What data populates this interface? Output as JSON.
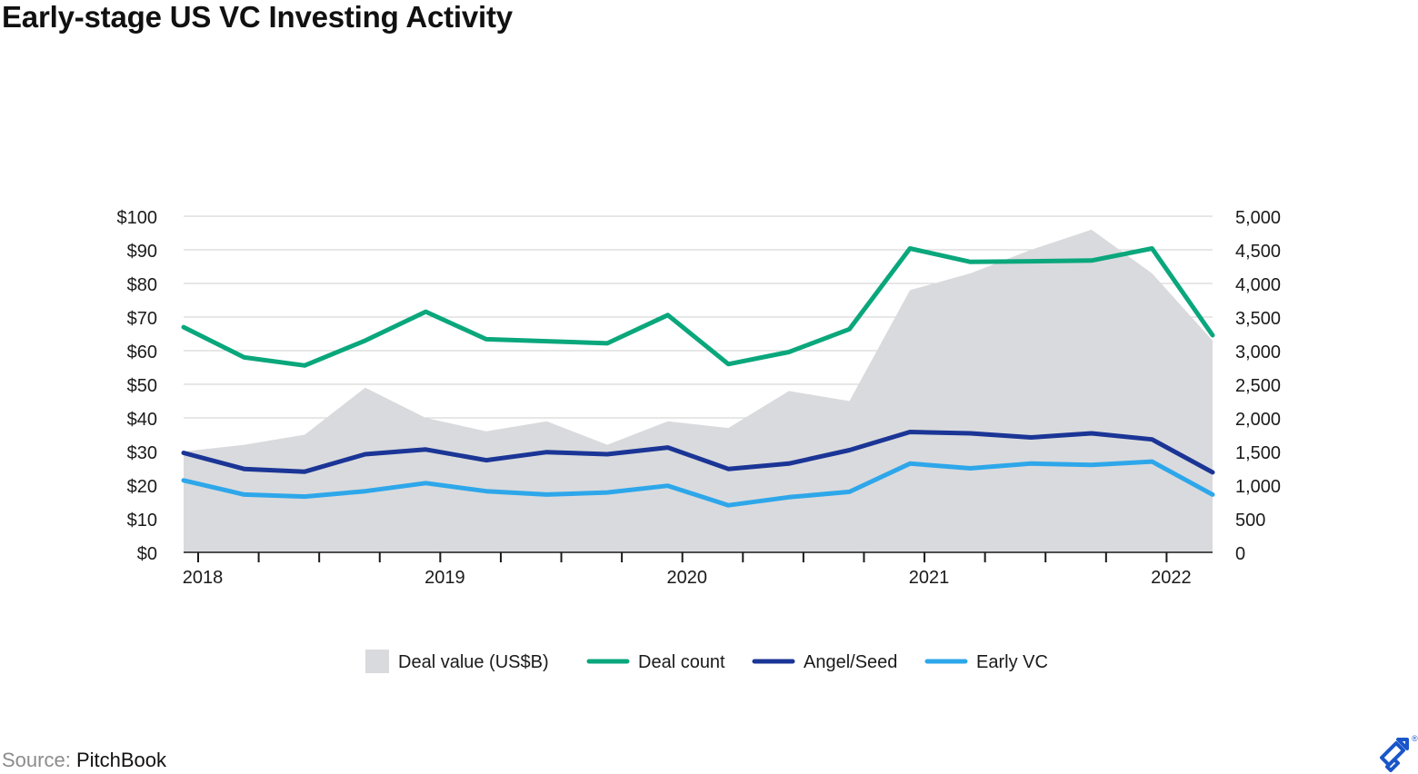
{
  "title": "Early-stage US VC Investing Activity",
  "source": {
    "label": "Source:",
    "value": "PitchBook"
  },
  "logo": {
    "icon": "toptal-logo-icon",
    "mark": "®"
  },
  "colors": {
    "deal_value": "#d9dadd",
    "deal_count": "#0aa77c",
    "angel_seed": "#1b3596",
    "early_vc": "#2ea7ea",
    "grid": "#cfcfcf",
    "logo": "#1a56c9"
  },
  "chart_data": {
    "type": "line",
    "x": [
      "2018 Q1",
      "2018 Q2",
      "2018 Q3",
      "2018 Q4",
      "2019 Q1",
      "2019 Q2",
      "2019 Q3",
      "2019 Q4",
      "2020 Q1",
      "2020 Q2",
      "2020 Q3",
      "2020 Q4",
      "2021 Q1",
      "2021 Q2",
      "2021 Q3",
      "2021 Q4",
      "2022 Q1",
      "2022 Q2"
    ],
    "x_tick_labels": [
      "2018",
      "2019",
      "2020",
      "2021",
      "2022"
    ],
    "y_left": {
      "ticks": [
        "$0",
        "$10",
        "$20",
        "$30",
        "$40",
        "$50",
        "$60",
        "$70",
        "$80",
        "$90",
        "$100"
      ],
      "ylim": [
        0,
        100
      ]
    },
    "y_right": {
      "ticks": [
        "0",
        "500",
        "1,000",
        "1,500",
        "2,000",
        "2,500",
        "3,000",
        "3,500",
        "4,000",
        "4,500",
        "5,000"
      ],
      "ylim": [
        0,
        5000
      ]
    },
    "grid": true,
    "legend_position": "bottom-center",
    "series": [
      {
        "name": "Deal value (US$B)",
        "type": "area",
        "axis": "left",
        "values": [
          30,
          32,
          35,
          49,
          40,
          36,
          39,
          32,
          39,
          37,
          48,
          45,
          78,
          83,
          90,
          96,
          83,
          63
        ]
      },
      {
        "name": "Deal count",
        "type": "line",
        "axis": "right",
        "values": [
          3350,
          2900,
          2780,
          3150,
          3580,
          3170,
          3140,
          3110,
          3530,
          2800,
          2980,
          3320,
          4520,
          4320,
          4330,
          4340,
          4520,
          3230
        ]
      },
      {
        "name": "Angel/Seed",
        "type": "line",
        "axis": "right",
        "values": [
          1480,
          1240,
          1200,
          1460,
          1530,
          1370,
          1490,
          1460,
          1560,
          1240,
          1320,
          1520,
          1790,
          1770,
          1710,
          1770,
          1680,
          1190
        ]
      },
      {
        "name": "Early VC",
        "type": "line",
        "axis": "right",
        "values": [
          1070,
          860,
          830,
          910,
          1030,
          910,
          860,
          890,
          990,
          700,
          820,
          900,
          1320,
          1250,
          1320,
          1300,
          1350,
          860
        ]
      }
    ]
  }
}
